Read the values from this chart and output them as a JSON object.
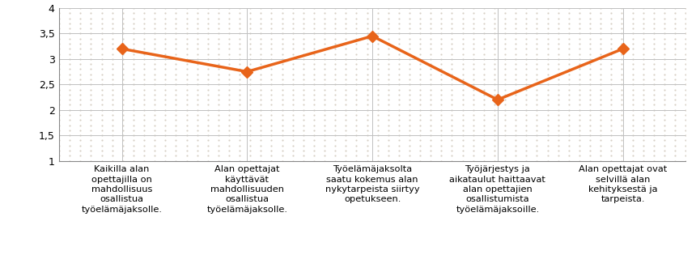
{
  "x_positions": [
    0,
    1,
    2,
    3,
    4
  ],
  "y_values": [
    3.2,
    2.75,
    3.45,
    2.2,
    3.2
  ],
  "line_color": "#E8641A",
  "marker_color": "#E8641A",
  "marker_style": "D",
  "marker_size": 7,
  "line_width": 2.5,
  "ylim": [
    1,
    4
  ],
  "yticks": [
    1,
    1.5,
    2,
    2.5,
    3,
    3.5,
    4
  ],
  "ytick_labels": [
    "1",
    "1,5",
    "2",
    "2,5",
    "3",
    "3,5",
    "4"
  ],
  "x_labels": [
    "Kaikilla alan\nopettajilla on\nmahdollisuus\nosallistua\ntyöelämäjaksolle.",
    "Alan opettajat\nkäyttävät\nmahdollisuuden\nosallistua\ntyöelämäjaksolle.",
    "Työelämäjaksolta\nsaatu kokemus alan\nnykytarpeista siirtyy\nopetukseen.",
    "Työjärjestys ja\naikataulut haittaavat\nalan opettajien\nosallistumista\ntyöelämäjaksoille.",
    "Alan opettajat ovat\nselvillä alan\nkehityksestä ja\ntarpeista."
  ],
  "background_color": "#FFFFFF",
  "plot_bg_color": "#FFFFFF",
  "grid_color": "#C0C0C0",
  "dot_color": "#C8BEB0",
  "font_size_yticks": 9,
  "font_size_xlabels": 8.2,
  "border_color": "#888888"
}
